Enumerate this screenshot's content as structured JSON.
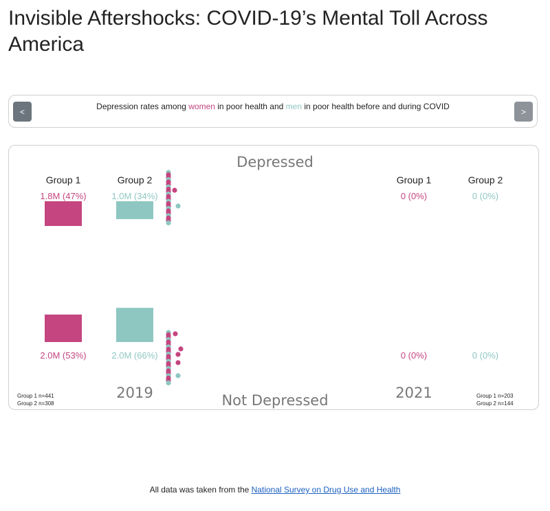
{
  "page": {
    "title": "Invisible Aftershocks: COVID-19’s Mental Toll Across America"
  },
  "nav": {
    "prev_label": "<",
    "next_label": ">",
    "caption_pre": "Depression rates among ",
    "caption_women": "women",
    "caption_mid": " in poor health and ",
    "caption_men": "men",
    "caption_post": " in poor health before and during COVID"
  },
  "chart_data": {
    "type": "bar",
    "top_label": "Depressed",
    "bottom_label": "Not Depressed",
    "colors": {
      "group1": "#c4457f",
      "group2": "#8ec7c2"
    },
    "panels": [
      {
        "year": "2019",
        "groups": [
          "Group 1",
          "Group 2"
        ],
        "depressed": [
          {
            "group": "Group 1",
            "count_label": "1.8M (47%)",
            "pct": 47
          },
          {
            "group": "Group 2",
            "count_label": "1.0M (34%)",
            "pct": 34
          }
        ],
        "not_depressed": [
          {
            "group": "Group 1",
            "count_label": "2.0M (53%)",
            "pct": 53
          },
          {
            "group": "Group 2",
            "count_label": "2.0M (66%)",
            "pct": 66
          }
        ],
        "sample_sizes": [
          "Group 1 n=441",
          "Group 2 n=308"
        ]
      },
      {
        "year": "2021",
        "groups": [
          "Group 1",
          "Group 2"
        ],
        "depressed": [
          {
            "group": "Group 1",
            "count_label": "0 (0%)",
            "pct": 0
          },
          {
            "group": "Group 2",
            "count_label": "0 (0%)",
            "pct": 0
          }
        ],
        "not_depressed": [
          {
            "group": "Group 1",
            "count_label": "0 (0%)",
            "pct": 0
          },
          {
            "group": "Group 2",
            "count_label": "0 (0%)",
            "pct": 0
          }
        ],
        "sample_sizes": [
          "Group 1 n=203",
          "Group 2 n=144"
        ]
      }
    ]
  },
  "footer": {
    "prefix": "All data was taken from the ",
    "link_text": "National Survey on Drug Use and Health"
  }
}
